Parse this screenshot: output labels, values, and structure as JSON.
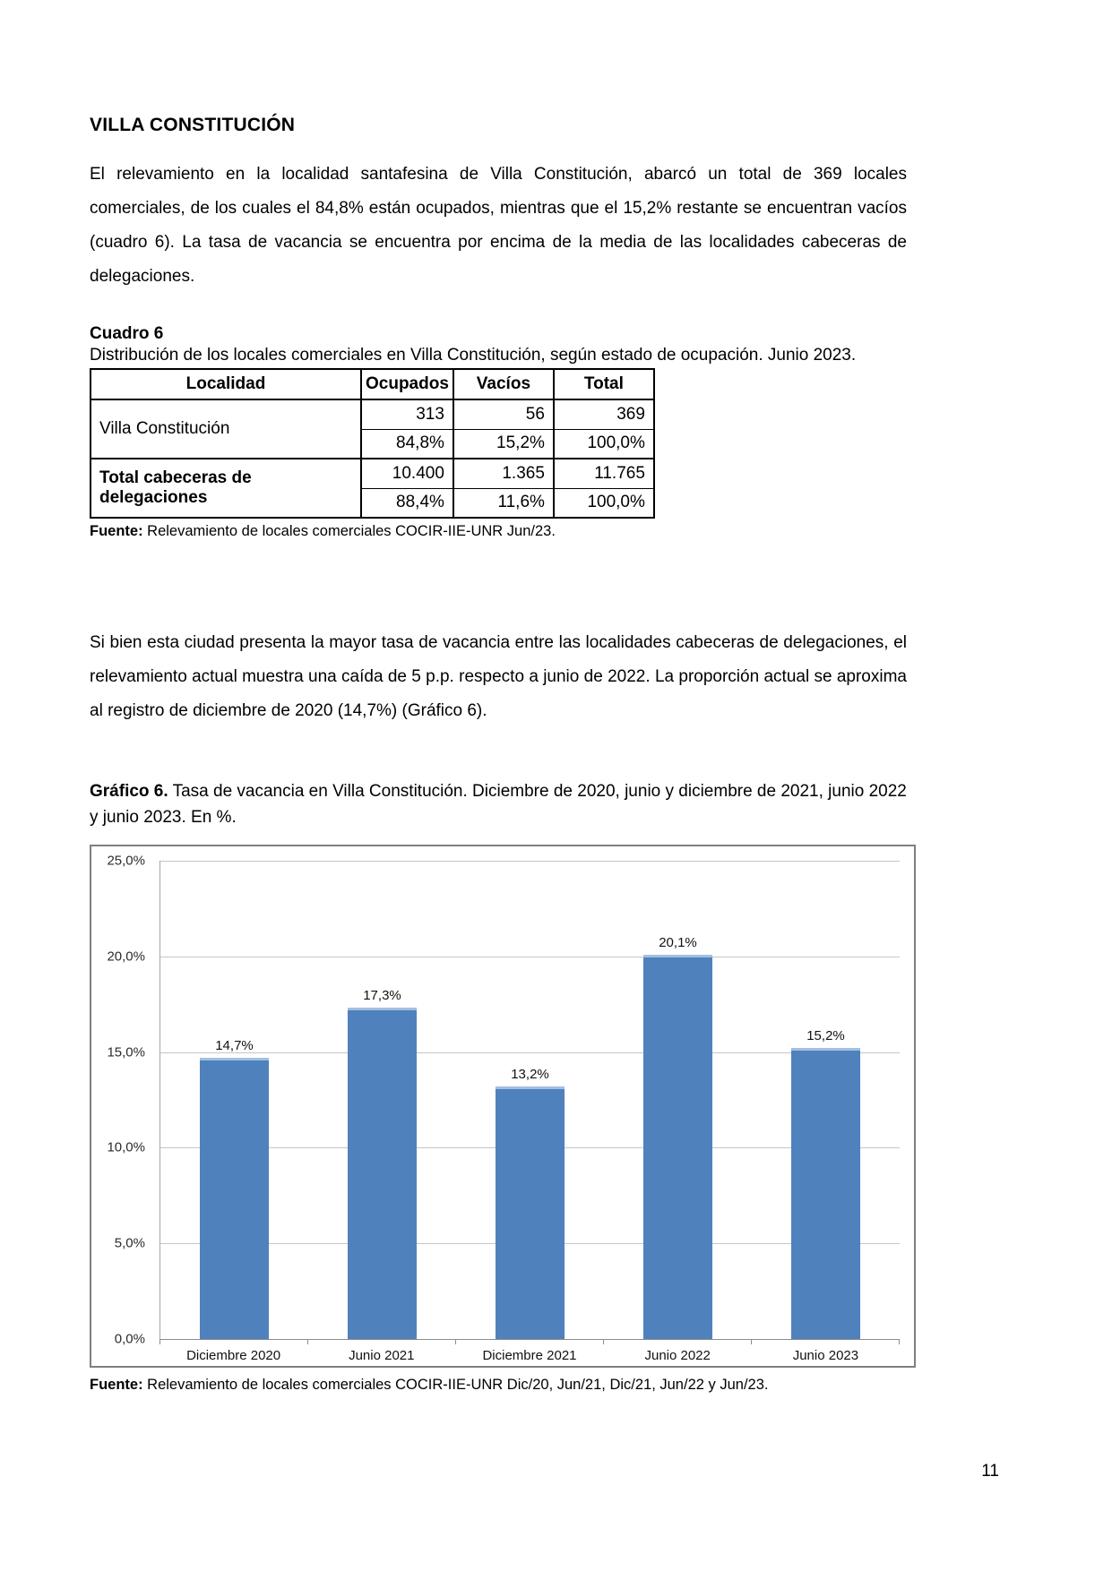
{
  "page": {
    "title": "VILLA CONSTITUCIÓN",
    "paragraph1": "El relevamiento en la localidad santafesina de Villa Constitución, abarcó un total de 369 locales comerciales, de los cuales el 84,8% están ocupados, mientras que el 15,2% restante se encuentran vacíos (cuadro 6). La tasa de vacancia se encuentra por encima de la media de las localidades cabeceras de delegaciones.",
    "paragraph2": "Si bien esta ciudad presenta la mayor tasa de vacancia entre las localidades cabeceras de delegaciones, el relevamiento actual muestra una caída de 5 p.p. respecto a junio de 2022. La proporción actual se aproxima al registro de diciembre de 2020 (14,7%) (Gráfico 6).",
    "page_number": "11"
  },
  "table": {
    "label": "Cuadro 6",
    "caption": "Distribución de los locales comerciales en Villa Constitución, según estado de ocupación. Junio 2023.",
    "headers": [
      "Localidad",
      "Ocupados",
      "Vacíos",
      "Total"
    ],
    "rows": [
      {
        "localidad": "Villa Constitución",
        "abs": [
          "313",
          "56",
          "369"
        ],
        "pct": [
          "84,8%",
          "15,2%",
          "100,0%"
        ]
      },
      {
        "localidad": "Total cabeceras de delegaciones",
        "abs": [
          "10.400",
          "1.365",
          "11.765"
        ],
        "pct": [
          "88,4%",
          "11,6%",
          "100,0%"
        ]
      }
    ],
    "source_label": "Fuente:",
    "source_text": " Relevamiento de locales comerciales COCIR-IIE-UNR Jun/23."
  },
  "chart": {
    "label": "Gráfico 6.",
    "caption": " Tasa de vacancia en Villa Constitución. Diciembre de 2020, junio y diciembre de 2021, junio 2022 y junio 2023. En %.",
    "source_label": "Fuente:",
    "source_text": " Relevamiento de locales comerciales COCIR-IIE-UNR Dic/20, Jun/21, Dic/21, Jun/22 y Jun/23."
  },
  "chart_data": {
    "type": "bar",
    "title": "Tasa de vacancia en Villa Constitución",
    "categories": [
      "Diciembre 2020",
      "Junio 2021",
      "Diciembre 2021",
      "Junio 2022",
      "Junio 2023"
    ],
    "values": [
      14.7,
      17.3,
      13.2,
      20.1,
      15.2
    ],
    "value_labels": [
      "14,7%",
      "17,3%",
      "13,2%",
      "20,1%",
      "15,2%"
    ],
    "xlabel": "",
    "ylabel": "",
    "ylim": [
      0,
      25
    ],
    "ytick_step": 5,
    "ytick_labels": [
      "25,0%",
      "20,0%",
      "15,0%",
      "10,0%",
      "5,0%",
      "0,0%"
    ],
    "grid": true,
    "legend": false,
    "bar_color": "#4f81bd"
  }
}
